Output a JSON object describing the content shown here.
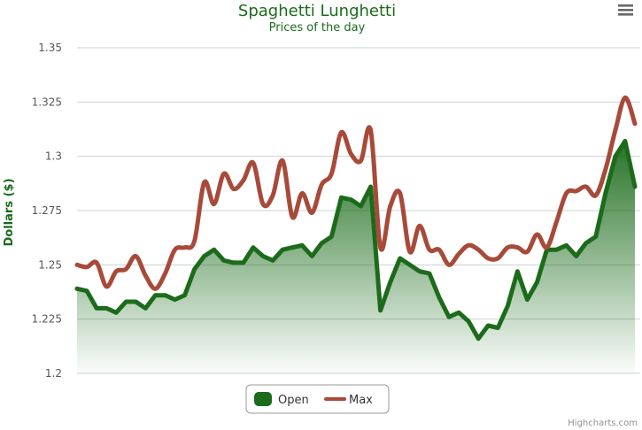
{
  "chart_data": {
    "type": "area",
    "title": "Spaghetti Lunghetti",
    "subtitle": "Prices of the day",
    "xlabel": "",
    "ylabel": "Dollars ($)",
    "ylim": [
      1.2,
      1.35
    ],
    "yticks": [
      "1.2",
      "1.225",
      "1.25",
      "1.275",
      "1.3",
      "1.325",
      "1.35"
    ],
    "grid": true,
    "legend": "bottom-center",
    "credit": "Highcharts.com",
    "colors": {
      "open": "#1b6b1b",
      "max": "#a84a3a",
      "title": "#1b6b1b"
    },
    "menu_icon": "hamburger-menu-icon",
    "series": [
      {
        "name": "Open",
        "type": "area",
        "values": [
          1.239,
          1.238,
          1.23,
          1.23,
          1.228,
          1.233,
          1.233,
          1.23,
          1.236,
          1.236,
          1.234,
          1.236,
          1.248,
          1.254,
          1.257,
          1.252,
          1.251,
          1.251,
          1.258,
          1.254,
          1.252,
          1.257,
          1.258,
          1.259,
          1.254,
          1.26,
          1.263,
          1.281,
          1.28,
          1.277,
          1.286,
          1.229,
          1.242,
          1.253,
          1.25,
          1.247,
          1.246,
          1.235,
          1.226,
          1.228,
          1.224,
          1.216,
          1.222,
          1.221,
          1.231,
          1.247,
          1.234,
          1.242,
          1.257,
          1.257,
          1.259,
          1.254,
          1.26,
          1.263,
          1.283,
          1.3,
          1.307,
          1.286
        ]
      },
      {
        "name": "Max",
        "type": "line",
        "values": [
          1.25,
          1.249,
          1.251,
          1.24,
          1.247,
          1.248,
          1.254,
          1.245,
          1.239,
          1.246,
          1.257,
          1.258,
          1.261,
          1.288,
          1.278,
          1.292,
          1.285,
          1.289,
          1.297,
          1.278,
          1.282,
          1.298,
          1.272,
          1.283,
          1.274,
          1.287,
          1.292,
          1.311,
          1.301,
          1.298,
          1.312,
          1.258,
          1.277,
          1.283,
          1.256,
          1.268,
          1.257,
          1.257,
          1.25,
          1.255,
          1.259,
          1.257,
          1.253,
          1.253,
          1.258,
          1.258,
          1.256,
          1.264,
          1.258,
          1.27,
          1.283,
          1.284,
          1.286,
          1.282,
          1.294,
          1.312,
          1.327,
          1.315
        ]
      }
    ]
  }
}
